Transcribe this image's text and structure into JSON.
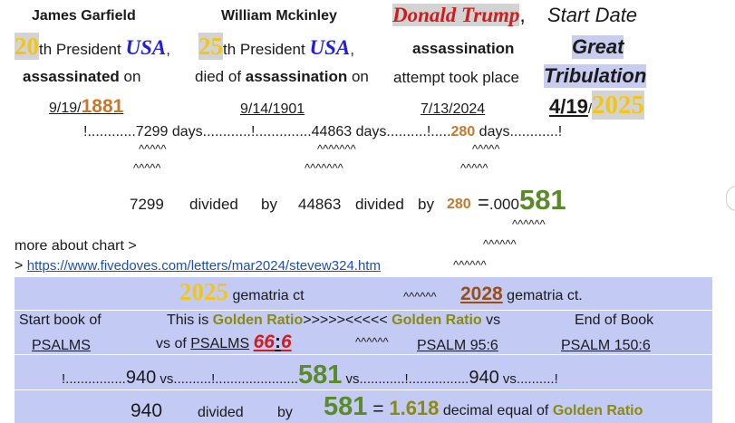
{
  "col1": {
    "name": "James Garfield",
    "number": "20",
    "th_pres": "th President",
    "usa": "USA",
    "comma": ",",
    "assassinated": "assassinated",
    "on": " on",
    "date_md": "9/19/",
    "date_year": "1881"
  },
  "col2": {
    "name": "William Mckinley",
    "number": "25",
    "th_pres": "th President",
    "usa": "USA",
    "comma": ",",
    "died_of": "died of ",
    "assassination": "assassination",
    "on": " on",
    "date": "9/14/1901"
  },
  "col3": {
    "name": "Donald Trump",
    "comma": ",",
    "assassination": "assassination",
    "attempt": "attempt took place",
    "date": "7/13/2024"
  },
  "col4": {
    "title": "Start Date",
    "great": "Great",
    "tribulation": "Tribulation",
    "date_md": "4/19",
    "slash": "/",
    "date_year": "2025"
  },
  "days_line": {
    "p1": "!............7299 days............!..............44863 days..........!.....",
    "n280": "280",
    "p2": " days............!"
  },
  "carets": {
    "c1": "^^^^^",
    "c2": "^^^^^^^",
    "c3": "^^^^^",
    "c4": "^^^^^",
    "c5": "^^^^^^^",
    "c6": "^^^^^"
  },
  "division": {
    "a": "7299",
    "div1": "divided",
    "by1": "by",
    "b": "44863",
    "div2": "divided",
    "by2": "by",
    "c": "280",
    "eq": "=",
    "dec": ".000",
    "result": "581",
    "carets1": "^^^^^^",
    "carets2": "^^^^^^"
  },
  "more": {
    "text": "more about chart >",
    "arrow": ">",
    "url": "https://www.fivedoves.com/letters/mar2024/stevew324.htm",
    "carets": "^^^^^^"
  },
  "table": {
    "r1_year": "2025",
    "r1_text": " gematria ct",
    "r1_carets": "^^^^^^",
    "r1_year2": "2028",
    "r1_text2": " gematria ct.",
    "r2_start": "Start book of",
    "r2_this": "This is ",
    "r2_gr1": "Golden Ratio",
    "r2_arrows": ">>>>><<<<< ",
    "r2_gr2": "Golden Ratio",
    "r2_vs": " vs",
    "r2_end": "End of Book",
    "r3_psalms": "PSALMS",
    "r3_vsof": "vs of ",
    "r3_psalms2": "PSALMS",
    "r3_66": "66",
    "r3_colon": ":",
    "r3_6": "6",
    "r3_carets": "^^^^^^",
    "r3_ps95": "PSALM 95:6",
    "r3_ps150": "PSALM 150:6",
    "r4_a": "!................",
    "r4_940a": "940",
    "r4_b": " vs..........!......................",
    "r4_581": "581",
    "r4_c": " vs............!................",
    "r4_940b": "940",
    "r4_d": " vs..........!",
    "r5_940": "940",
    "r5_divided": "divided",
    "r5_by": "by",
    "r5_581": "581",
    "r5_eq": " = ",
    "r5_1": "1",
    "r5_618": ".618",
    "r5_decimal": " decimal equal of ",
    "r5_gr": "Golden Ratio"
  },
  "colors": {
    "gold": "#f2c51b",
    "orange": "#c7782b",
    "blue": "#1f1fdc",
    "red": "#d01c1c",
    "green": "#5a8a2a",
    "band": "#c3caf3"
  }
}
